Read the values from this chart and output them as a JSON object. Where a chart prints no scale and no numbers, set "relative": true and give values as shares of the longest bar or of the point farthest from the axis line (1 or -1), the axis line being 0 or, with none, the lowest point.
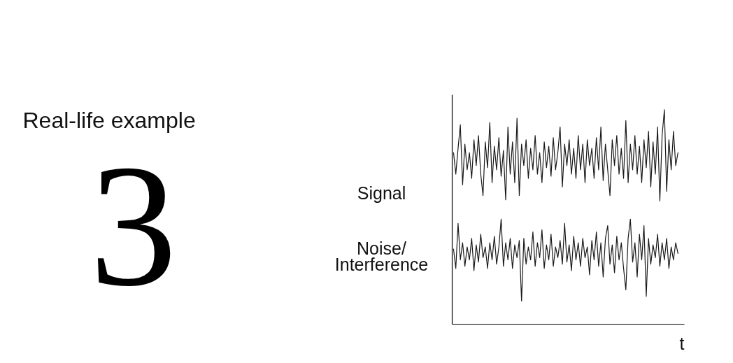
{
  "chart_data": {
    "type": "line",
    "title": "Real-life example",
    "annotations": [
      "3"
    ],
    "xlabel": "t",
    "relative": true,
    "categories": [
      null,
      null,
      null,
      null,
      null,
      null,
      null,
      null,
      null,
      null,
      null,
      null,
      null,
      null,
      null,
      null,
      null,
      null,
      null,
      null,
      null,
      null,
      null,
      null,
      null,
      null,
      null,
      null,
      null,
      null,
      null,
      null,
      null,
      null,
      null,
      null,
      null,
      null,
      null,
      null,
      null,
      null,
      null,
      null,
      null,
      null,
      null,
      null,
      null,
      null,
      null,
      null,
      null,
      null,
      null,
      null,
      null,
      null,
      null,
      null,
      null,
      null,
      null,
      null,
      null,
      null,
      null,
      null,
      null,
      null,
      null,
      null,
      null,
      null,
      null,
      null,
      null,
      null,
      null,
      null,
      null,
      null,
      null,
      null,
      null,
      null,
      null,
      null,
      null,
      null,
      null,
      null,
      null,
      null,
      null,
      null,
      null,
      null,
      null,
      null
    ],
    "series": [
      {
        "name": "Signal",
        "color": "#1a1a1a",
        "values": [
          0.8,
          0.7,
          0.82,
          0.93,
          0.65,
          0.84,
          0.72,
          0.8,
          0.68,
          0.86,
          0.74,
          0.88,
          0.7,
          0.6,
          0.85,
          0.73,
          0.94,
          0.66,
          0.83,
          0.72,
          0.87,
          0.69,
          0.81,
          0.58,
          0.92,
          0.7,
          0.85,
          0.66,
          0.96,
          0.6,
          0.84,
          0.74,
          0.86,
          0.68,
          0.82,
          0.72,
          0.88,
          0.7,
          0.8,
          0.66,
          0.85,
          0.73,
          0.83,
          0.69,
          0.87,
          0.72,
          0.8,
          0.92,
          0.64,
          0.84,
          0.74,
          0.86,
          0.7,
          0.82,
          0.68,
          0.88,
          0.72,
          0.84,
          0.66,
          0.86,
          0.74,
          0.82,
          0.68,
          0.87,
          0.72,
          0.92,
          0.67,
          0.84,
          0.72,
          0.6,
          0.86,
          0.74,
          0.88,
          0.7,
          0.82,
          0.68,
          0.95,
          0.66,
          0.84,
          0.72,
          0.88,
          0.7,
          0.83,
          0.66,
          0.86,
          0.73,
          0.9,
          0.64,
          0.85,
          0.7,
          0.92,
          0.575,
          0.88,
          1.0,
          0.62,
          0.86,
          0.72,
          0.9,
          0.74,
          0.8
        ]
      },
      {
        "name": "Noise/\nInterference",
        "color": "#1a1a1a",
        "values": [
          0.35,
          0.26,
          0.47,
          0.3,
          0.38,
          0.27,
          0.36,
          0.3,
          0.4,
          0.25,
          0.37,
          0.29,
          0.42,
          0.31,
          0.36,
          0.26,
          0.38,
          0.3,
          0.41,
          0.28,
          0.36,
          0.49,
          0.27,
          0.38,
          0.3,
          0.4,
          0.26,
          0.37,
          0.31,
          0.39,
          0.108,
          0.4,
          0.28,
          0.36,
          0.3,
          0.43,
          0.27,
          0.38,
          0.31,
          0.44,
          0.26,
          0.37,
          0.3,
          0.42,
          0.27,
          0.36,
          0.31,
          0.39,
          0.28,
          0.47,
          0.29,
          0.37,
          0.25,
          0.41,
          0.3,
          0.38,
          0.27,
          0.4,
          0.31,
          0.36,
          0.23,
          0.39,
          0.3,
          0.43,
          0.27,
          0.38,
          0.22,
          0.4,
          0.46,
          0.28,
          0.37,
          0.24,
          0.41,
          0.3,
          0.38,
          0.26,
          0.16,
          0.4,
          0.49,
          0.29,
          0.38,
          0.22,
          0.42,
          0.3,
          0.46,
          0.13,
          0.4,
          0.28,
          0.37,
          0.31,
          0.42,
          0.27,
          0.38,
          0.3,
          0.4,
          0.26,
          0.36,
          0.3,
          0.38,
          0.33
        ]
      }
    ]
  }
}
